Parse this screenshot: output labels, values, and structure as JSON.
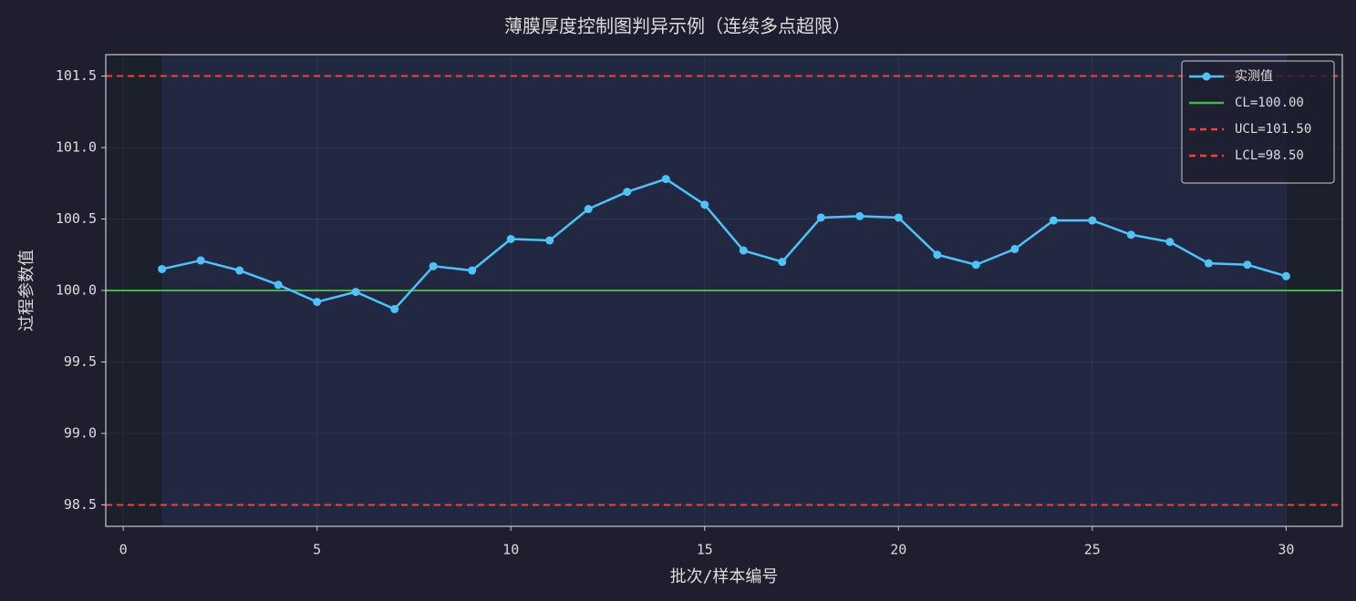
{
  "chart_data": {
    "type": "line",
    "title": "薄膜厚度控制图判异示例（连续多点超限）",
    "x_label": "批次/样本编号",
    "y_label": "过程参数值",
    "xlim": [
      -0.45,
      31.45
    ],
    "ylim": [
      98.35,
      101.65
    ],
    "xticks": [
      0,
      5,
      10,
      15,
      20,
      25,
      30
    ],
    "yticks": [
      98.5,
      {
        "value": 99,
        "label": "99.0"
      },
      99.5,
      {
        "value": 100,
        "label": "100.0"
      },
      100.5,
      {
        "value": 101,
        "label": "101.0"
      },
      101.5
    ],
    "grid": true,
    "legend_position": "upper-right",
    "highlight_span": [
      1,
      30
    ],
    "series": [
      {
        "name": "实测值",
        "color": "#4fc3f7",
        "x": [
          1,
          2,
          3,
          4,
          5,
          6,
          7,
          8,
          9,
          10,
          11,
          12,
          13,
          14,
          15,
          16,
          17,
          18,
          19,
          20,
          21,
          22,
          23,
          24,
          25,
          26,
          27,
          28,
          29,
          30
        ],
        "values": [
          100.15,
          100.21,
          100.14,
          100.04,
          99.92,
          99.99,
          99.87,
          100.17,
          100.14,
          100.36,
          100.35,
          100.57,
          100.69,
          100.78,
          100.6,
          100.28,
          100.2,
          100.51,
          100.52,
          100.51,
          100.25,
          100.18,
          100.29,
          100.49,
          100.49,
          100.39,
          100.34,
          100.19,
          100.18,
          100.1
        ]
      }
    ],
    "reference_lines": [
      {
        "name": "CL=100.00",
        "value": 100,
        "color": "#4caf50",
        "style": "solid"
      },
      {
        "name": "UCL=101.50",
        "value": 101.5,
        "color": "#f44336",
        "style": "dashed"
      },
      {
        "name": "LCL=98.50",
        "value": 98.5,
        "color": "#f44336",
        "style": "dashed"
      }
    ]
  }
}
